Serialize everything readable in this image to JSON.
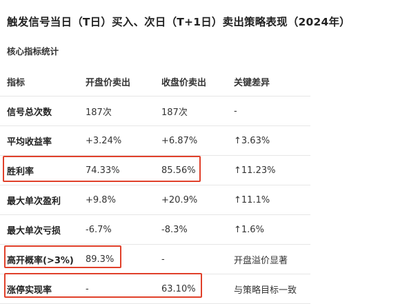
{
  "title": "触发信号当日（T日）买入、次日（T+1日）卖出策略表现（2024年）",
  "subtitle": "核心指标统计",
  "table": {
    "headers": [
      "指标",
      "开盘价卖出",
      "收盘价卖出",
      "关键差异"
    ],
    "rows": [
      [
        "信号总次数",
        "187次",
        "187次",
        "-"
      ],
      [
        "平均收益率",
        "+3.24%",
        "+6.87%",
        "↑3.63%"
      ],
      [
        "胜利率",
        "74.33%",
        "85.56%",
        "↑11.23%"
      ],
      [
        "最大单次盈利",
        "+9.8%",
        "+20.9%",
        "↑11.1%"
      ],
      [
        "最大单次亏损",
        "-6.7%",
        "-8.3%",
        "↑1.6%"
      ],
      [
        "高开概率(>3%)",
        "89.3%",
        "-",
        "开盘溢价显著"
      ],
      [
        "涨停实现率",
        "-",
        "63.10%",
        "与策略目标一致"
      ]
    ]
  },
  "highlight_color": "#e0402a"
}
